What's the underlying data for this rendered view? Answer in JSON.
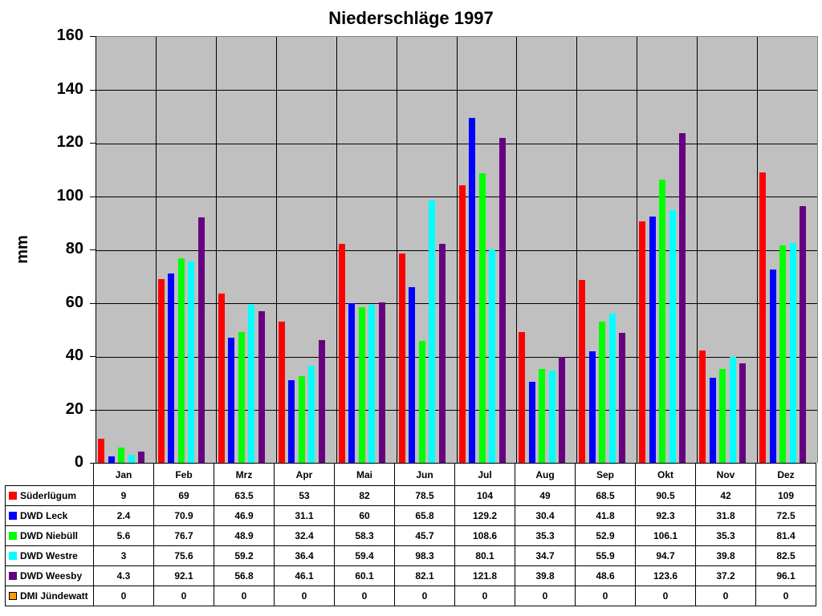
{
  "chart_data": {
    "type": "bar",
    "title": "Niederschläge 1997",
    "xlabel": "",
    "ylabel": "mm",
    "ylim": [
      0,
      160
    ],
    "yticks": [
      0,
      20,
      40,
      60,
      80,
      100,
      120,
      140,
      160
    ],
    "grid": true,
    "legend_position": "data-table-left",
    "categories": [
      "Jan",
      "Feb",
      "Mrz",
      "Apr",
      "Mai",
      "Jun",
      "Jul",
      "Aug",
      "Sep",
      "Okt",
      "Nov",
      "Dez"
    ],
    "series": [
      {
        "name": "Süderlügum",
        "color": "#ff0000",
        "values": [
          9,
          69,
          63.5,
          53,
          82,
          78.5,
          104,
          49,
          68.5,
          90.5,
          42,
          109
        ]
      },
      {
        "name": "DWD Leck",
        "color": "#0000ff",
        "values": [
          2.4,
          70.9,
          46.9,
          31.1,
          60,
          65.8,
          129.2,
          30.4,
          41.8,
          92.3,
          31.8,
          72.5
        ]
      },
      {
        "name": "DWD Niebüll",
        "color": "#00ff00",
        "values": [
          5.6,
          76.7,
          48.9,
          32.4,
          58.3,
          45.7,
          108.6,
          35.3,
          52.9,
          106.1,
          35.3,
          81.4
        ]
      },
      {
        "name": "DWD Westre",
        "color": "#00ffff",
        "values": [
          3,
          75.6,
          59.2,
          36.4,
          59.4,
          98.3,
          80.1,
          34.7,
          55.9,
          94.7,
          39.8,
          82.5
        ]
      },
      {
        "name": "DWD Weesby",
        "color": "#660080",
        "values": [
          4.3,
          92.1,
          56.8,
          46.1,
          60.1,
          82.1,
          121.8,
          39.8,
          48.6,
          123.6,
          37.2,
          96.1
        ]
      },
      {
        "name": "DMI Jündewatt",
        "color": "#ff9900",
        "values": [
          0,
          0,
          0,
          0,
          0,
          0,
          0,
          0,
          0,
          0,
          0,
          0
        ]
      }
    ]
  },
  "colors": {
    "plot_background": "#c0c0c0"
  }
}
